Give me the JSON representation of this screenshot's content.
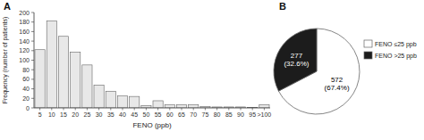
{
  "chart_data": [
    {
      "type": "bar",
      "title": "A",
      "categories": [
        "5",
        "10",
        "15",
        "20",
        "25",
        "30",
        "35",
        "40",
        "45",
        "50",
        "55",
        "60",
        "65",
        "70",
        "75",
        "80",
        "85",
        "90",
        "95",
        ">100"
      ],
      "values": [
        122,
        182,
        150,
        117,
        90,
        48,
        35,
        25,
        24,
        5,
        15,
        7,
        7,
        7,
        3,
        2,
        2,
        2,
        1,
        7
      ],
      "color": "#e8e8e8",
      "xlabel": "FENO (ppb)",
      "ylabel": "Frequency (number of patients)",
      "ylim": [
        0,
        200
      ],
      "yticks": [
        0,
        20,
        40,
        60,
        80,
        100,
        120,
        140,
        160,
        180,
        200
      ],
      "grid": false
    },
    {
      "type": "pie",
      "title": "B",
      "categories": [
        "FENO ≤25 ppb",
        "FENO >25 ppb"
      ],
      "values": [
        572,
        277
      ],
      "value_labels": [
        "572\n(67.4%)",
        "277\n(32.6%)"
      ],
      "data_labels": true,
      "colors": [
        "#ffffff",
        "#1c1c1c"
      ],
      "legend": "right"
    }
  ]
}
